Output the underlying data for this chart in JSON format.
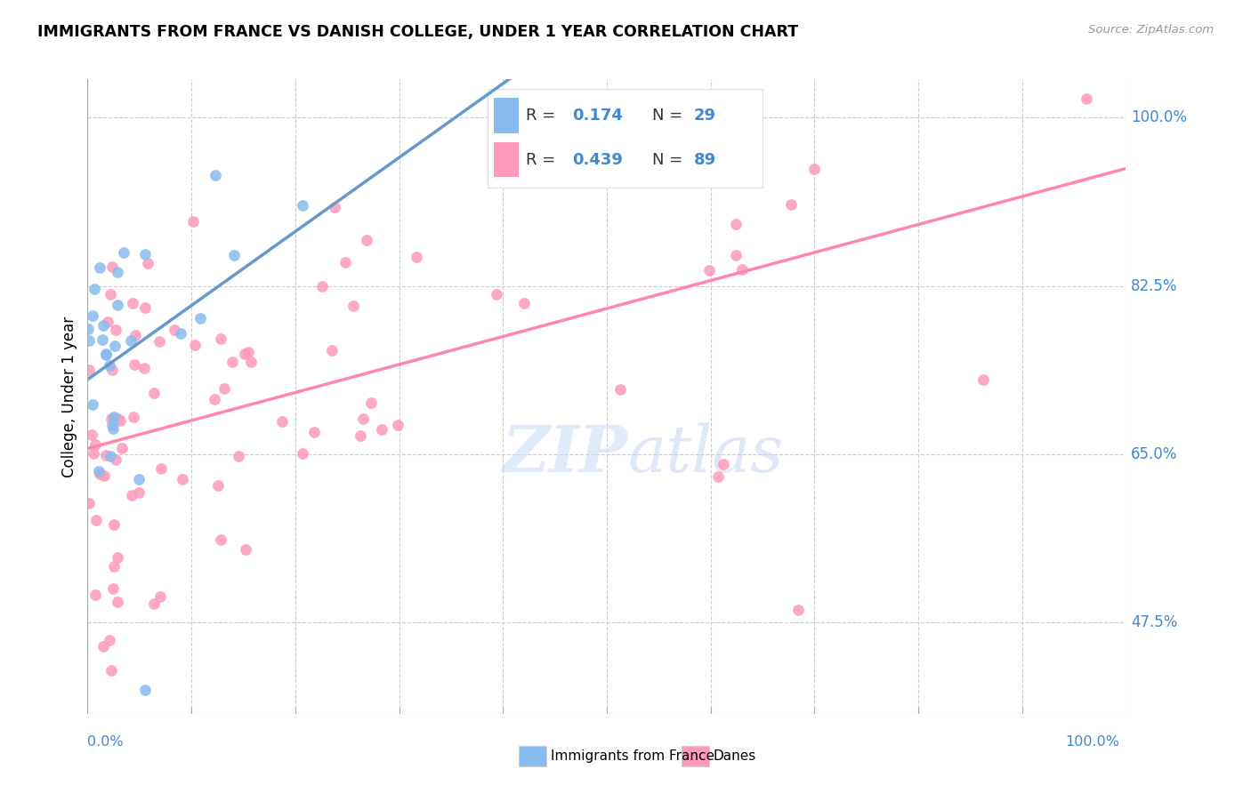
{
  "title": "IMMIGRANTS FROM FRANCE VS DANISH COLLEGE, UNDER 1 YEAR CORRELATION CHART",
  "source": "Source: ZipAtlas.com",
  "ylabel": "College, Under 1 year",
  "legend_label1": "Immigrants from France",
  "legend_label2": "Danes",
  "r1": 0.174,
  "n1": 29,
  "r2": 0.439,
  "n2": 89,
  "color_blue": "#88BBEE",
  "color_pink": "#FF99BB",
  "color_blue_line": "#6699CC",
  "color_pink_line": "#FF88AA",
  "color_axis_text": "#4488CC",
  "color_grid": "#cccccc",
  "xmin": 0.0,
  "xmax": 100.0,
  "ymin": 38.0,
  "ymax": 104.0,
  "ytick_values": [
    47.5,
    65.0,
    82.5,
    100.0
  ],
  "ytick_labels": [
    "47.5%",
    "65.0%",
    "82.5%",
    "100.0%"
  ],
  "watermark_text": "ZIPatlas",
  "watermark_color": "#DDEEFF"
}
